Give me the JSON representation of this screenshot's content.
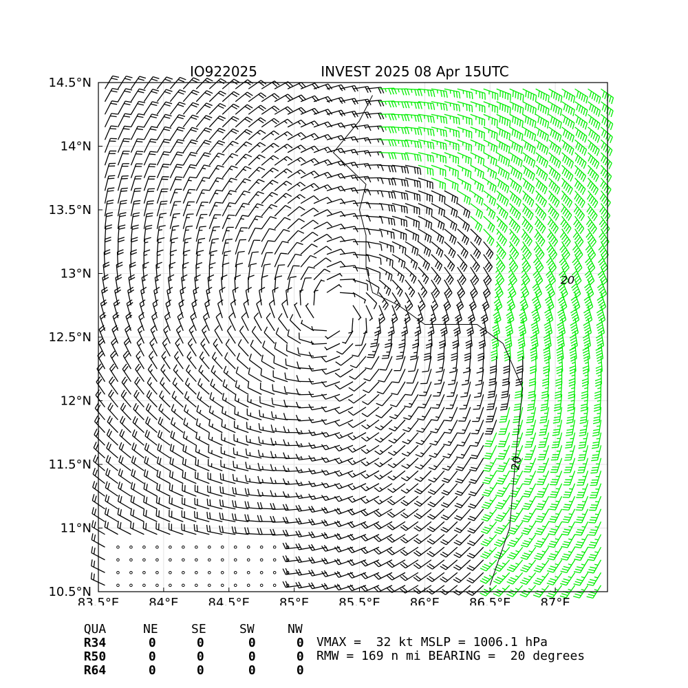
{
  "title_left": "IO922025",
  "title_right": "INVEST 2025 08 Apr 15UTC",
  "chart_data": {
    "type": "wind_barb_map",
    "lon_range": [
      83.5,
      87.4
    ],
    "lat_range": [
      10.5,
      14.5
    ],
    "x_tick_labels": [
      "83.5°E",
      "84°E",
      "84.5°E",
      "85°E",
      "85.5°E",
      "86°E",
      "86.5°E",
      "87°E"
    ],
    "y_tick_labels": [
      "10.5°N",
      "11°N",
      "11.5°N",
      "12°N",
      "12.5°N",
      "13°N",
      "13.5°N",
      "14°N",
      "14.5°N"
    ],
    "center": {
      "lon": 85.3,
      "lat": 12.7
    },
    "grid": true,
    "barb_colors": {
      "below_34kt": "#000000",
      "at_or_above_34kt": "#00ee00"
    },
    "contour_labels": [
      "20",
      "20"
    ]
  },
  "radii": {
    "header": [
      "QUA",
      "NE",
      "SE",
      "SW",
      "NW"
    ],
    "rows": [
      {
        "label": "R34",
        "values": [
          "0",
          "0",
          "0",
          "0"
        ]
      },
      {
        "label": "R50",
        "values": [
          "0",
          "0",
          "0",
          "0"
        ]
      },
      {
        "label": "R64",
        "values": [
          "0",
          "0",
          "0",
          "0"
        ]
      }
    ]
  },
  "summary": {
    "line1": "VMAX =  32 kt MSLP = 1006.1 hPa",
    "line2": "RMW = 169 n mi BEARING =  20 degrees"
  }
}
